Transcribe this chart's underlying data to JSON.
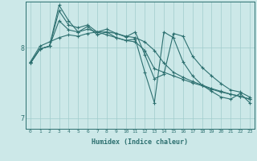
{
  "xlabel": "Humidex (Indice chaleur)",
  "bg_color": "#cce8e8",
  "line_color": "#2d7070",
  "grid_color": "#a0cccc",
  "xlim": [
    -0.5,
    23.5
  ],
  "ylim": [
    6.85,
    8.65
  ],
  "yticks": [
    7,
    8
  ],
  "xticks": [
    0,
    1,
    2,
    3,
    4,
    5,
    6,
    7,
    8,
    9,
    10,
    11,
    12,
    13,
    14,
    15,
    16,
    17,
    18,
    19,
    20,
    21,
    22,
    23
  ],
  "series": [
    [
      7.78,
      7.98,
      8.02,
      8.52,
      8.32,
      8.28,
      8.32,
      8.22,
      8.26,
      8.2,
      8.15,
      8.22,
      7.9,
      7.56,
      7.62,
      8.2,
      8.16,
      7.88,
      7.72,
      7.6,
      7.49,
      7.4,
      7.37,
      7.3
    ],
    [
      7.78,
      7.98,
      8.02,
      8.6,
      8.38,
      8.22,
      8.3,
      8.18,
      8.22,
      8.14,
      8.1,
      8.12,
      7.65,
      7.22,
      8.22,
      8.14,
      7.8,
      7.6,
      7.47,
      7.38,
      7.3,
      7.27,
      7.35,
      7.22
    ],
    [
      7.78,
      7.98,
      8.02,
      8.38,
      8.25,
      8.22,
      8.26,
      8.22,
      8.18,
      8.14,
      8.1,
      8.08,
      7.96,
      7.7,
      7.65,
      7.6,
      7.55,
      7.5,
      7.46,
      7.41,
      7.37,
      7.34,
      7.31,
      7.27
    ],
    [
      7.8,
      8.02,
      8.08,
      8.14,
      8.18,
      8.16,
      8.2,
      8.22,
      8.22,
      8.2,
      8.16,
      8.14,
      8.08,
      7.96,
      7.78,
      7.65,
      7.58,
      7.52,
      7.47,
      7.42,
      7.38,
      7.34,
      7.31,
      7.27
    ]
  ]
}
